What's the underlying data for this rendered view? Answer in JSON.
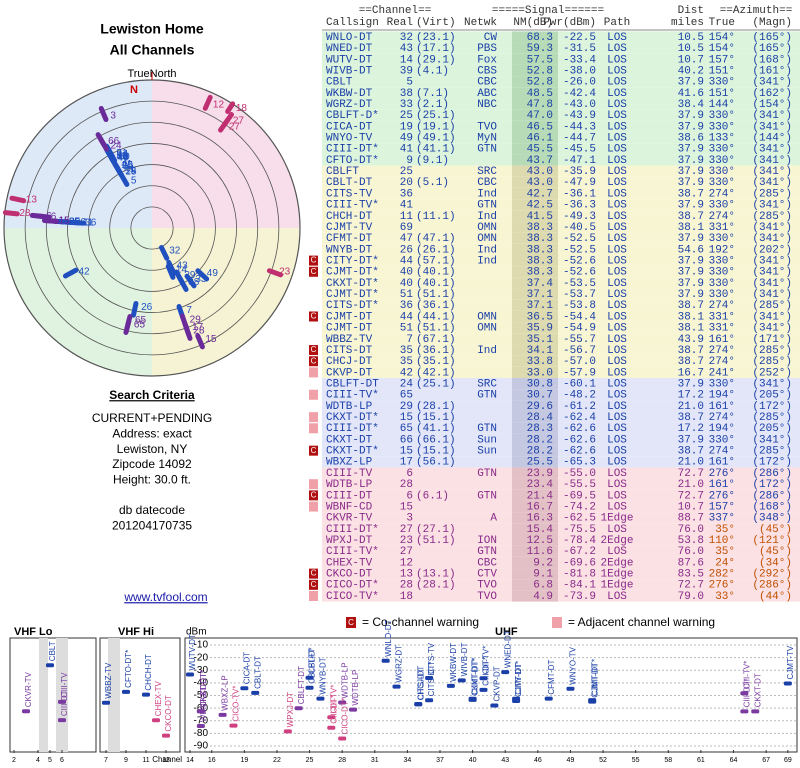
{
  "header": {
    "title": "Lewiston Home",
    "subtitle": "All Channels"
  },
  "polar": {
    "north_label": "TrueNorth",
    "n_label": "N"
  },
  "criteria": {
    "title": "Search Criteria",
    "lines": [
      "CURRENT+PENDING",
      "Address: exact",
      "Lewiston, NY",
      "Zipcode 14092",
      "Height: 30.0 ft.",
      "",
      "db datecode",
      "201204170735"
    ]
  },
  "link": "www.tvfool.com",
  "table": {
    "group_headers": [
      "==Channel==",
      "=====Signal======",
      "Dist",
      "==Azimuth=="
    ],
    "columns": [
      "Callsign",
      "Real",
      "(Virt)",
      "Netwk",
      "NM(dB)",
      "Pwr(dBm)",
      "Path",
      "miles",
      "True",
      "(Magn)"
    ],
    "rows": [
      [
        "WNLO-DT",
        32,
        "(23.1)",
        "CW",
        "68.3",
        "-22.5",
        "LOS",
        "10.5",
        "154°",
        "(165°)",
        null
      ],
      [
        "WNED-DT",
        43,
        "(17.1)",
        "PBS",
        "59.3",
        "-31.5",
        "LOS",
        "10.5",
        "154°",
        "(165°)",
        null
      ],
      [
        "WUTV-DT",
        14,
        "(29.1)",
        "Fox",
        "57.5",
        "-33.4",
        "LOS",
        "10.7",
        "157°",
        "(168°)",
        null
      ],
      [
        "WIVB-DT",
        39,
        "(4.1)",
        "CBS",
        "52.8",
        "-38.0",
        "LOS",
        "40.2",
        "151°",
        "(161°)",
        null
      ],
      [
        "CBLT",
        5,
        null,
        "CBC",
        "52.8",
        "-26.0",
        "LOS",
        "37.9",
        "330°",
        "(341°)",
        null
      ],
      [
        "WKBW-DT",
        38,
        "(7.1)",
        "ABC",
        "48.5",
        "-42.4",
        "LOS",
        "41.6",
        "151°",
        "(162°)",
        null
      ],
      [
        "WGRZ-DT",
        33,
        "(2.1)",
        "NBC",
        "47.8",
        "-43.0",
        "LOS",
        "38.4",
        "144°",
        "(154°)",
        null
      ],
      [
        "CBLFT-D*",
        25,
        "(25.1)",
        null,
        "47.0",
        "-43.9",
        "LOS",
        "37.9",
        "330°",
        "(341°)",
        null
      ],
      [
        "CICA-DT",
        19,
        "(19.1)",
        "TVO",
        "46.5",
        "-44.3",
        "LOS",
        "37.9",
        "330°",
        "(341°)",
        null
      ],
      [
        "WNYO-TV",
        49,
        "(49.1)",
        "MyN",
        "46.1",
        "-44.7",
        "LOS",
        "38.6",
        "133°",
        "(144°)",
        null
      ],
      [
        "CIII-DT*",
        41,
        "(41.1)",
        "GTN",
        "45.5",
        "-45.5",
        "LOS",
        "37.9",
        "330°",
        "(341°)",
        null
      ],
      [
        "CFTO-DT*",
        9,
        "(9.1)",
        null,
        "43.7",
        "-47.1",
        "LOS",
        "37.9",
        "330°",
        "(341°)",
        null
      ],
      [
        "CBLFT",
        25,
        null,
        "SRC",
        "43.0",
        "-35.9",
        "LOS",
        "37.9",
        "330°",
        "(341°)",
        null
      ],
      [
        "CBLT-DT",
        20,
        "(5.1)",
        "CBC",
        "43.0",
        "-47.9",
        "LOS",
        "37.9",
        "330°",
        "(341°)",
        null
      ],
      [
        "CITS-TV",
        36,
        null,
        "Ind",
        "42.7",
        "-36.1",
        "LOS",
        "38.7",
        "274°",
        "(285°)",
        null
      ],
      [
        "CIII-TV*",
        41,
        null,
        "GTN",
        "42.5",
        "-36.3",
        "LOS",
        "37.9",
        "330°",
        "(341°)",
        null
      ],
      [
        "CHCH-DT",
        11,
        "(11.1)",
        "Ind",
        "41.5",
        "-49.3",
        "LOS",
        "38.7",
        "274°",
        "(285°)",
        null
      ],
      [
        "CJMT-TV",
        69,
        null,
        "OMN",
        "38.3",
        "-40.5",
        "LOS",
        "38.1",
        "331°",
        "(341°)",
        null
      ],
      [
        "CFMT-DT",
        47,
        "(47.1)",
        "OMN",
        "38.3",
        "-52.5",
        "LOS",
        "37.9",
        "330°",
        "(341°)",
        null
      ],
      [
        "WNYB-DT",
        26,
        "(26.1)",
        "Ind",
        "38.3",
        "-52.5",
        "LOS",
        "54.6",
        "192°",
        "(202°)",
        null
      ],
      [
        "CITY-DT*",
        44,
        "(57.1)",
        "Ind",
        "38.3",
        "-52.6",
        "LOS",
        "37.9",
        "330°",
        "(341°)",
        "co"
      ],
      [
        "CJMT-DT*",
        40,
        "(40.1)",
        null,
        "38.3",
        "-52.6",
        "LOS",
        "37.9",
        "330°",
        "(341°)",
        "co"
      ],
      [
        "CKXT-DT*",
        40,
        "(40.1)",
        null,
        "37.4",
        "-53.5",
        "LOS",
        "37.9",
        "330°",
        "(341°)",
        null
      ],
      [
        "CJMT-DT*",
        51,
        "(51.1)",
        null,
        "37.1",
        "-53.7",
        "LOS",
        "37.9",
        "330°",
        "(341°)",
        null
      ],
      [
        "CITS-DT*",
        36,
        "(36.1)",
        null,
        "37.1",
        "-53.8",
        "LOS",
        "38.7",
        "274°",
        "(285°)",
        null
      ],
      [
        "CJMT-DT",
        44,
        "(44.1)",
        "OMN",
        "36.5",
        "-54.4",
        "LOS",
        "38.1",
        "331°",
        "(341°)",
        "co"
      ],
      [
        "CJMT-DT",
        51,
        "(51.1)",
        "OMN",
        "35.9",
        "-54.9",
        "LOS",
        "38.1",
        "331°",
        "(341°)",
        null
      ],
      [
        "WBBZ-TV",
        7,
        "(67.1)",
        null,
        "35.1",
        "-55.7",
        "LOS",
        "43.9",
        "161°",
        "(171°)",
        null
      ],
      [
        "CITS-DT",
        35,
        "(36.1)",
        "Ind",
        "34.1",
        "-56.7",
        "LOS",
        "38.7",
        "274°",
        "(285°)",
        "co"
      ],
      [
        "CHCJ-DT",
        35,
        "(35.1)",
        null,
        "33.8",
        "-57.0",
        "LOS",
        "38.7",
        "274°",
        "(285°)",
        "co"
      ],
      [
        "CKVP-DT",
        42,
        "(42.1)",
        null,
        "33.0",
        "-57.9",
        "LOS",
        "16.7",
        "241°",
        "(252°)",
        "adjacent"
      ],
      [
        "CBLFT-DT",
        24,
        "(25.1)",
        "SRC",
        "30.8",
        "-60.1",
        "LOS",
        "37.9",
        "330°",
        "(341°)",
        null
      ],
      [
        "CIII-TV*",
        65,
        null,
        "GTN",
        "30.7",
        "-48.2",
        "LOS",
        "17.2",
        "194°",
        "(205°)",
        "adjacent"
      ],
      [
        "WDTB-LP",
        29,
        "(28.1)",
        null,
        "29.6",
        "-61.2",
        "LOS",
        "21.0",
        "161°",
        "(172°)",
        null
      ],
      [
        "CKXT-DT*",
        15,
        "(15.1)",
        null,
        "28.4",
        "-62.4",
        "LOS",
        "38.7",
        "274°",
        "(285°)",
        "adjacent"
      ],
      [
        "CIII-DT*",
        65,
        "(41.1)",
        "GTN",
        "28.3",
        "-62.6",
        "LOS",
        "17.2",
        "194°",
        "(205°)",
        "adjacent"
      ],
      [
        "CKXT-DT",
        66,
        "(66.1)",
        "Sun",
        "28.2",
        "-62.6",
        "LOS",
        "37.9",
        "330°",
        "(341°)",
        null
      ],
      [
        "CKXT-DT*",
        15,
        "(15.1)",
        "Sun",
        "28.2",
        "-62.6",
        "LOS",
        "38.7",
        "274°",
        "(285°)",
        "co"
      ],
      [
        "WBXZ-LP",
        17,
        "(56.1)",
        null,
        "25.5",
        "-65.3",
        "LOS",
        "21.0",
        "161°",
        "(172°)",
        null
      ],
      [
        "CIII-TV",
        6,
        null,
        "GTN",
        "23.9",
        "-55.0",
        "LOS",
        "72.7",
        "276°",
        "(286°)",
        null
      ],
      [
        "WDTB-LP",
        28,
        null,
        null,
        "23.4",
        "-55.5",
        "LOS",
        "21.0",
        "161°",
        "(172°)",
        "adjacent"
      ],
      [
        "CIII-DT",
        6,
        "(6.1)",
        "GTN",
        "21.4",
        "-69.5",
        "LOS",
        "72.7",
        "276°",
        "(286°)",
        "co"
      ],
      [
        "WBNF-CD",
        15,
        null,
        null,
        "16.7",
        "-74.2",
        "LOS",
        "10.7",
        "157°",
        "(168°)",
        "adjacent"
      ],
      [
        "CKVR-TV",
        3,
        null,
        "A",
        "16.3",
        "-62.5",
        "1Edge",
        "88.7",
        "337°",
        "(348°)",
        null
      ],
      [
        "CIII-DT*",
        27,
        "(27.1)",
        null,
        "15.4",
        "-75.5",
        "LOS",
        "76.0",
        "35°",
        "(45°)",
        null
      ],
      [
        "WPXJ-DT",
        23,
        "(51.1)",
        "ION",
        "12.5",
        "-78.4",
        "2Edge",
        "53.8",
        "110°",
        "(121°)",
        null
      ],
      [
        "CIII-TV*",
        27,
        null,
        "GTN",
        "11.6",
        "-67.2",
        "LOS",
        "76.0",
        "35°",
        "(45°)",
        null
      ],
      [
        "CHEX-TV",
        12,
        null,
        "CBC",
        "9.2",
        "-69.6",
        "2Edge",
        "87.6",
        "24°",
        "(34°)",
        null
      ],
      [
        "CKCO-DT",
        13,
        "(13.1)",
        "CTV",
        "9.1",
        "-81.8",
        "1Edge",
        "83.5",
        "282°",
        "(292°)",
        "co"
      ],
      [
        "CICO-DT*",
        28,
        "(28.1)",
        "TVO",
        "6.8",
        "-84.1",
        "1Edge",
        "72.7",
        "276°",
        "(286°)",
        "co"
      ],
      [
        "CICO-TV*",
        18,
        null,
        "TVO",
        "4.9",
        "-73.9",
        "LOS",
        "79.0",
        "33°",
        "(44°)",
        "adjacent"
      ]
    ]
  },
  "spectrum": {
    "band_labels": [
      "VHF Lo",
      "VHF Hi",
      "UHF"
    ],
    "y_label": "dBm",
    "x_label": "Channel",
    "legend": {
      "co_icon": "C",
      "co_text": "= Co-channel warning",
      "adj_text": "= Adjacent channel warning"
    },
    "ylim": [
      -10,
      -90
    ],
    "yticks": [
      -10,
      -20,
      -30,
      -40,
      -50,
      -60,
      -70,
      -80,
      -90
    ],
    "xticks": [
      2,
      4,
      5,
      6,
      7,
      9,
      11,
      13,
      14,
      16,
      19,
      22,
      25,
      28,
      31,
      34,
      37,
      40,
      43,
      46,
      49,
      52,
      55,
      58,
      61,
      64,
      67,
      69
    ]
  }
}
